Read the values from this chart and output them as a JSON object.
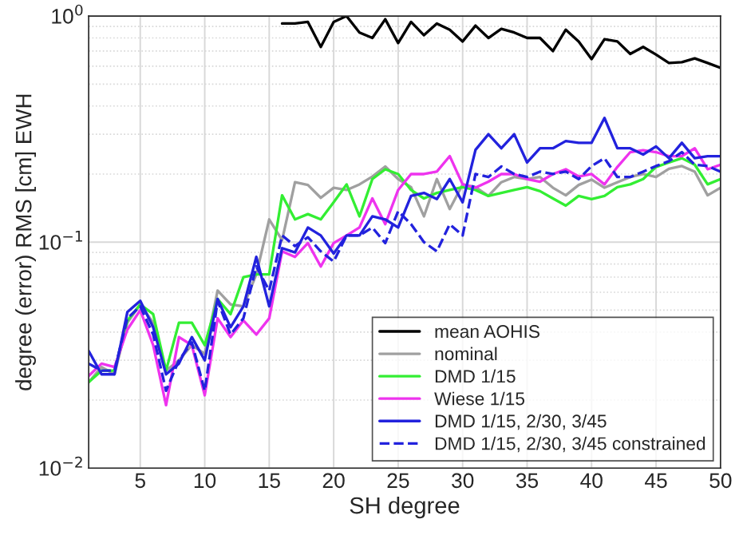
{
  "chart_data": {
    "type": "line",
    "xlabel": "SH degree",
    "ylabel": "degree (error) RMS [cm] EWH",
    "x": [
      1,
      2,
      3,
      4,
      5,
      6,
      7,
      8,
      9,
      10,
      11,
      12,
      13,
      14,
      15,
      16,
      17,
      18,
      19,
      20,
      21,
      22,
      23,
      24,
      25,
      26,
      27,
      28,
      29,
      30,
      31,
      32,
      33,
      34,
      35,
      36,
      37,
      38,
      39,
      40,
      41,
      42,
      43,
      44,
      45,
      46,
      47,
      48,
      49,
      50
    ],
    "series": [
      {
        "name": "mean AOHIS",
        "color": "#000000",
        "values": [
          null,
          null,
          null,
          null,
          null,
          null,
          null,
          null,
          null,
          null,
          null,
          null,
          null,
          null,
          null,
          0.927,
          0.927,
          0.942,
          0.73,
          0.942,
          1.0,
          0.846,
          0.8,
          0.968,
          0.76,
          0.942,
          0.823,
          0.927,
          0.87,
          0.772,
          0.907,
          0.8,
          0.878,
          0.846,
          0.8,
          0.8,
          0.7,
          0.87,
          0.772,
          0.645,
          0.79,
          0.772,
          0.68,
          0.73,
          0.675,
          0.62,
          0.625,
          0.65,
          0.62,
          0.59
        ]
      },
      {
        "name": "nominal",
        "color": "#a0a0a0",
        "values": [
          0.024,
          0.028,
          0.026,
          0.044,
          0.053,
          0.044,
          0.027,
          0.03,
          0.035,
          0.032,
          0.061,
          0.053,
          0.052,
          0.072,
          0.126,
          0.102,
          0.184,
          0.179,
          0.157,
          0.174,
          0.17,
          0.18,
          0.195,
          0.216,
          0.19,
          0.175,
          0.13,
          0.19,
          0.14,
          0.18,
          0.175,
          0.16,
          0.184,
          0.194,
          0.19,
          0.194,
          0.174,
          0.161,
          0.179,
          0.189,
          0.174,
          0.184,
          0.194,
          0.2,
          0.194,
          0.211,
          0.217,
          0.205,
          0.161,
          0.174
        ]
      },
      {
        "name": "DMD 1/15",
        "color": "#33ee33",
        "values": [
          0.024,
          0.027,
          0.027,
          0.045,
          0.053,
          0.048,
          0.027,
          0.044,
          0.044,
          0.035,
          0.056,
          0.048,
          0.07,
          0.072,
          0.072,
          0.161,
          0.126,
          0.133,
          0.126,
          0.15,
          0.18,
          0.13,
          0.19,
          0.21,
          0.2,
          0.17,
          0.156,
          0.165,
          0.17,
          0.175,
          0.17,
          0.16,
          0.165,
          0.17,
          0.175,
          0.168,
          0.156,
          0.145,
          0.16,
          0.155,
          0.16,
          0.175,
          0.18,
          0.19,
          0.215,
          0.225,
          0.235,
          0.22,
          0.18,
          0.19
        ]
      },
      {
        "name": "Wiese 1/15",
        "color": "#ee33ee",
        "values": [
          0.0256,
          0.029,
          0.028,
          0.041,
          0.05,
          0.035,
          0.019,
          0.038,
          0.035,
          0.021,
          0.046,
          0.038,
          0.045,
          0.039,
          0.046,
          0.091,
          0.086,
          0.099,
          0.078,
          0.099,
          0.107,
          0.116,
          0.156,
          0.12,
          0.17,
          0.2,
          0.2,
          0.205,
          0.24,
          0.18,
          0.174,
          0.185,
          0.2,
          0.2,
          0.19,
          0.185,
          0.2,
          0.21,
          0.195,
          0.2,
          0.18,
          0.215,
          0.25,
          0.255,
          0.25,
          0.24,
          0.24,
          0.26,
          0.21,
          0.22
        ]
      },
      {
        "name": "DMD 1/15, 2/30, 3/45",
        "color": "#2222dd",
        "values": [
          0.033,
          0.026,
          0.026,
          0.049,
          0.055,
          0.042,
          0.026,
          0.029,
          0.038,
          0.03,
          0.056,
          0.042,
          0.052,
          0.086,
          0.052,
          0.094,
          0.09,
          0.116,
          0.107,
          0.089,
          0.107,
          0.107,
          0.13,
          0.126,
          0.116,
          0.16,
          0.165,
          0.155,
          0.19,
          0.15,
          0.256,
          0.3,
          0.26,
          0.3,
          0.225,
          0.26,
          0.26,
          0.28,
          0.275,
          0.275,
          0.354,
          0.26,
          0.26,
          0.244,
          0.265,
          0.235,
          0.275,
          0.235,
          0.24,
          0.24
        ]
      },
      {
        "name": "DMD 1/15, 2/30, 3/45 constrained",
        "color": "#2222dd",
        "line_style": "dashed",
        "values": [
          0.029,
          0.027,
          0.027,
          0.046,
          0.052,
          0.039,
          0.022,
          0.03,
          0.036,
          0.022,
          0.055,
          0.039,
          0.046,
          0.078,
          0.061,
          0.107,
          0.096,
          0.105,
          0.091,
          0.082,
          0.107,
          0.107,
          0.116,
          0.099,
          0.137,
          0.12,
          0.1,
          0.091,
          0.12,
          0.107,
          0.2,
          0.194,
          0.216,
          0.2,
          0.194,
          0.205,
          0.2,
          0.205,
          0.19,
          0.217,
          0.235,
          0.194,
          0.194,
          0.205,
          0.217,
          0.228,
          0.25,
          0.22,
          0.217,
          0.205
        ]
      }
    ],
    "log": "y",
    "xlim": [
      1,
      50
    ],
    "xticks": [
      5,
      10,
      15,
      20,
      25,
      30,
      35,
      40,
      45,
      50
    ],
    "ylim": [
      0.01,
      1
    ],
    "yticks": [
      {
        "value": 0.01,
        "label": "10$^{−2}$"
      },
      {
        "value": 0.1,
        "label": "10$^{−1}$"
      },
      {
        "value": 1,
        "label": "10$^{0}$"
      }
    ],
    "grid": true,
    "legend": "bottom right",
    "line_style": "solid",
    "marker": "none"
  }
}
